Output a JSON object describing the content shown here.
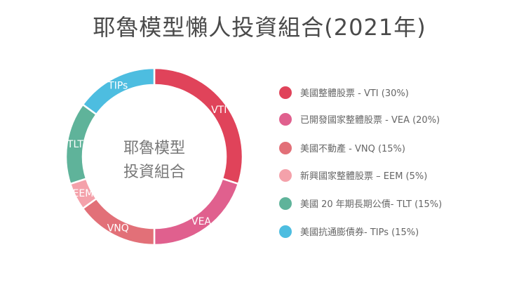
{
  "chart_data": {
    "type": "pie",
    "title": "耶魯模型懶人投資組合(2021年)",
    "center_label": [
      "耶魯模型",
      "投資組合"
    ],
    "legend_position": "right",
    "slices": [
      {
        "label": "VTI",
        "value": 30,
        "legend": "美國整體股票 - VTI (30%)",
        "color": "#e0435a"
      },
      {
        "label": "VEA",
        "value": 20,
        "legend": "已開發國家整體股票 - VEA  (20%)",
        "color": "#e0608e"
      },
      {
        "label": "VNQ",
        "value": 15,
        "legend": "美國不動產 - VNQ  (15%)",
        "color": "#e27078"
      },
      {
        "label": "EEM",
        "value": 5,
        "legend": "新興國家整體股票 – EEM  (5%)",
        "color": "#f4a1aa"
      },
      {
        "label": "TLT",
        "value": 15,
        "legend": "美國 20 年期長期公債- TLT (15%)",
        "color": "#5fb39a"
      },
      {
        "label": "TIPs",
        "value": 15,
        "legend": "美國抗通膨債券- TIPs  (15%)",
        "color": "#4dbde0"
      }
    ]
  }
}
